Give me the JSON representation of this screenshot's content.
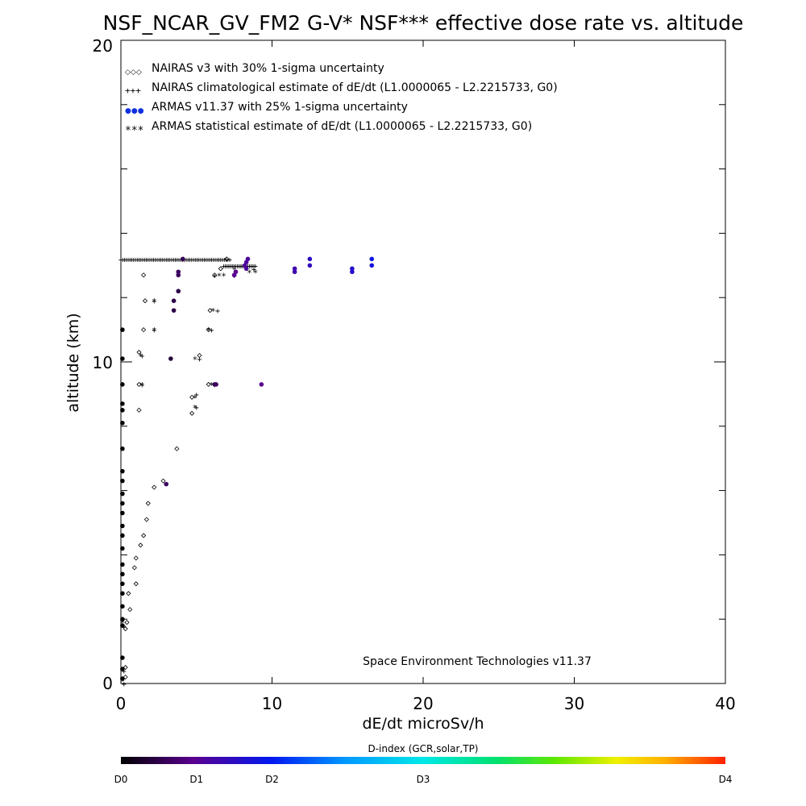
{
  "chart_data": {
    "type": "scatter",
    "title": "NSF_NCAR_GV_FM2 G-V* NSF*** effective dose rate vs. altitude",
    "xlabel": "dE/dt microSv/h",
    "ylabel": "altitude (km)",
    "xlim": [
      0,
      40
    ],
    "ylim": [
      0,
      20
    ],
    "x_ticks": [
      "0",
      "10",
      "20",
      "30",
      "40"
    ],
    "y_ticks": [
      "0",
      "10",
      "20"
    ],
    "watermark": "Space Environment Technologies v11.37",
    "legend": [
      {
        "symbol": "◇◇◇",
        "label": "NAIRAS v3 with 30% 1-sigma uncertainty"
      },
      {
        "symbol": "+++",
        "label": "NAIRAS climatological estimate of dE/dt (L1.0000065 - L2.2215733, G0)"
      },
      {
        "symbol": "●●●",
        "label": "ARMAS v11.37 with 25% 1-sigma uncertainty"
      },
      {
        "symbol": "***",
        "label": "ARMAS statistical estimate of dE/dt (L1.0000065 - L2.2215733, G0)"
      }
    ],
    "colorbar": {
      "title": "D-index (GCR,solar,TP)",
      "labels": [
        "D0",
        "D1",
        "D2",
        "D3",
        "D4"
      ],
      "label_positions": [
        0,
        0.125,
        0.25,
        0.5,
        1.0
      ]
    },
    "series": [
      {
        "name": "NAIRAS v3",
        "marker": "diamond",
        "points": [
          [
            0.3,
            0.2
          ],
          [
            0.3,
            0.5
          ],
          [
            0.3,
            1.7
          ],
          [
            0.4,
            1.9
          ],
          [
            0.6,
            2.3
          ],
          [
            0.5,
            2.8
          ],
          [
            1.0,
            3.1
          ],
          [
            0.9,
            3.6
          ],
          [
            1.0,
            3.9
          ],
          [
            1.3,
            4.3
          ],
          [
            1.5,
            4.6
          ],
          [
            1.7,
            5.1
          ],
          [
            1.8,
            5.6
          ],
          [
            2.2,
            6.1
          ],
          [
            2.8,
            6.3
          ],
          [
            3.7,
            7.3
          ],
          [
            4.7,
            8.4
          ],
          [
            4.7,
            8.9
          ],
          [
            1.2,
            8.5
          ],
          [
            1.2,
            9.3
          ],
          [
            5.8,
            9.3
          ],
          [
            1.2,
            10.3
          ],
          [
            5.2,
            10.2
          ],
          [
            1.5,
            11.0
          ],
          [
            5.8,
            11.0
          ],
          [
            1.6,
            11.9
          ],
          [
            5.9,
            11.6
          ],
          [
            1.5,
            12.7
          ],
          [
            6.2,
            12.7
          ],
          [
            6.6,
            12.9
          ],
          [
            7.0,
            13.2
          ]
        ]
      },
      {
        "name": "NAIRAS climatological",
        "marker": "plus",
        "points": [
          [
            0.2,
            0.0
          ],
          [
            0.2,
            0.4
          ],
          [
            0.2,
            1.8
          ],
          [
            1.4,
            10.2
          ],
          [
            5.2,
            10.1
          ],
          [
            1.4,
            9.3
          ],
          [
            6.2,
            9.3
          ],
          [
            5.0,
            8.6
          ],
          [
            5.0,
            9.0
          ],
          [
            2.2,
            11.0
          ],
          [
            6.0,
            11.0
          ],
          [
            2.2,
            11.9
          ],
          [
            6.4,
            11.6
          ],
          [
            6.2,
            12.7
          ],
          [
            7.5,
            12.7
          ],
          [
            8.0,
            13.0
          ],
          [
            8.8,
            12.9
          ]
        ]
      },
      {
        "name": "ARMAS v11.37",
        "marker": "dot",
        "points": [
          {
            "x": 0.1,
            "y": 0.15,
            "d": 0.0
          },
          {
            "x": 0.1,
            "y": 0.45,
            "d": 0.0
          },
          {
            "x": 0.1,
            "y": 0.8,
            "d": 0.0
          },
          {
            "x": 0.1,
            "y": 1.8,
            "d": 0.0
          },
          {
            "x": 0.1,
            "y": 2.0,
            "d": 0.0
          },
          {
            "x": 0.1,
            "y": 2.4,
            "d": 0.0
          },
          {
            "x": 0.1,
            "y": 2.8,
            "d": 0.0
          },
          {
            "x": 0.1,
            "y": 3.1,
            "d": 0.0
          },
          {
            "x": 0.1,
            "y": 3.4,
            "d": 0.0
          },
          {
            "x": 0.1,
            "y": 3.7,
            "d": 0.0
          },
          {
            "x": 0.1,
            "y": 4.2,
            "d": 0.0
          },
          {
            "x": 0.1,
            "y": 4.6,
            "d": 0.0
          },
          {
            "x": 0.1,
            "y": 4.9,
            "d": 0.0
          },
          {
            "x": 0.1,
            "y": 5.3,
            "d": 0.0
          },
          {
            "x": 0.1,
            "y": 5.6,
            "d": 0.0
          },
          {
            "x": 0.1,
            "y": 5.9,
            "d": 0.0
          },
          {
            "x": 0.1,
            "y": 6.3,
            "d": 0.0
          },
          {
            "x": 0.1,
            "y": 6.6,
            "d": 0.0
          },
          {
            "x": 0.1,
            "y": 7.3,
            "d": 0.0
          },
          {
            "x": 0.1,
            "y": 8.1,
            "d": 0.0
          },
          {
            "x": 0.1,
            "y": 8.5,
            "d": 0.0
          },
          {
            "x": 0.1,
            "y": 8.7,
            "d": 0.0
          },
          {
            "x": 0.1,
            "y": 9.3,
            "d": 0.0
          },
          {
            "x": 0.1,
            "y": 10.1,
            "d": 0.0
          },
          {
            "x": 0.1,
            "y": 11.0,
            "d": 0.0
          },
          {
            "x": 3.0,
            "y": 6.2,
            "d": 0.08
          },
          {
            "x": 3.3,
            "y": 10.1,
            "d": 0.05
          },
          {
            "x": 3.5,
            "y": 11.6,
            "d": 0.06
          },
          {
            "x": 3.5,
            "y": 11.9,
            "d": 0.06
          },
          {
            "x": 3.8,
            "y": 12.2,
            "d": 0.06
          },
          {
            "x": 3.8,
            "y": 12.7,
            "d": 0.08
          },
          {
            "x": 3.8,
            "y": 12.8,
            "d": 0.08
          },
          {
            "x": 4.1,
            "y": 13.2,
            "d": 0.07
          },
          {
            "x": 6.2,
            "y": 9.3,
            "d": 0.08
          },
          {
            "x": 6.3,
            "y": 9.3,
            "d": 0.08
          },
          {
            "x": 7.5,
            "y": 12.7,
            "d": 0.12
          },
          {
            "x": 7.6,
            "y": 12.8,
            "d": 0.12
          },
          {
            "x": 8.2,
            "y": 13.0,
            "d": 0.14
          },
          {
            "x": 8.3,
            "y": 13.1,
            "d": 0.14
          },
          {
            "x": 8.4,
            "y": 13.2,
            "d": 0.14
          },
          {
            "x": 8.3,
            "y": 12.9,
            "d": 0.14
          },
          {
            "x": 9.3,
            "y": 9.3,
            "d": 0.12
          },
          {
            "x": 11.5,
            "y": 12.8,
            "d": 0.16
          },
          {
            "x": 11.5,
            "y": 12.9,
            "d": 0.16
          },
          {
            "x": 12.5,
            "y": 13.0,
            "d": 0.18
          },
          {
            "x": 12.5,
            "y": 13.2,
            "d": 0.19
          },
          {
            "x": 15.3,
            "y": 12.8,
            "d": 0.2
          },
          {
            "x": 15.3,
            "y": 12.9,
            "d": 0.2
          },
          {
            "x": 16.6,
            "y": 13.0,
            "d": 0.22
          },
          {
            "x": 16.6,
            "y": 13.2,
            "d": 0.23
          }
        ]
      },
      {
        "name": "ARMAS statistical",
        "marker": "asterisk",
        "points": [
          [
            0.1,
            0.1
          ],
          [
            0.1,
            1.9
          ],
          [
            1.3,
            10.2
          ],
          [
            4.9,
            10.1
          ],
          [
            1.4,
            9.3
          ],
          [
            6.0,
            9.3
          ],
          [
            4.9,
            8.6
          ],
          [
            4.9,
            8.9
          ],
          [
            2.2,
            11.0
          ],
          [
            5.8,
            11.0
          ],
          [
            2.2,
            11.9
          ],
          [
            6.1,
            11.6
          ],
          [
            6.5,
            12.7
          ],
          [
            6.8,
            12.7
          ],
          [
            7.5,
            12.9
          ],
          [
            8.5,
            12.8
          ],
          [
            8.9,
            12.8
          ]
        ]
      }
    ],
    "cruise_band": {
      "y": 13.2,
      "x_from": 0.0,
      "x_to": 7.3,
      "y2": 13.0,
      "x2_from": 6.8,
      "x2_to": 8.9
    }
  }
}
